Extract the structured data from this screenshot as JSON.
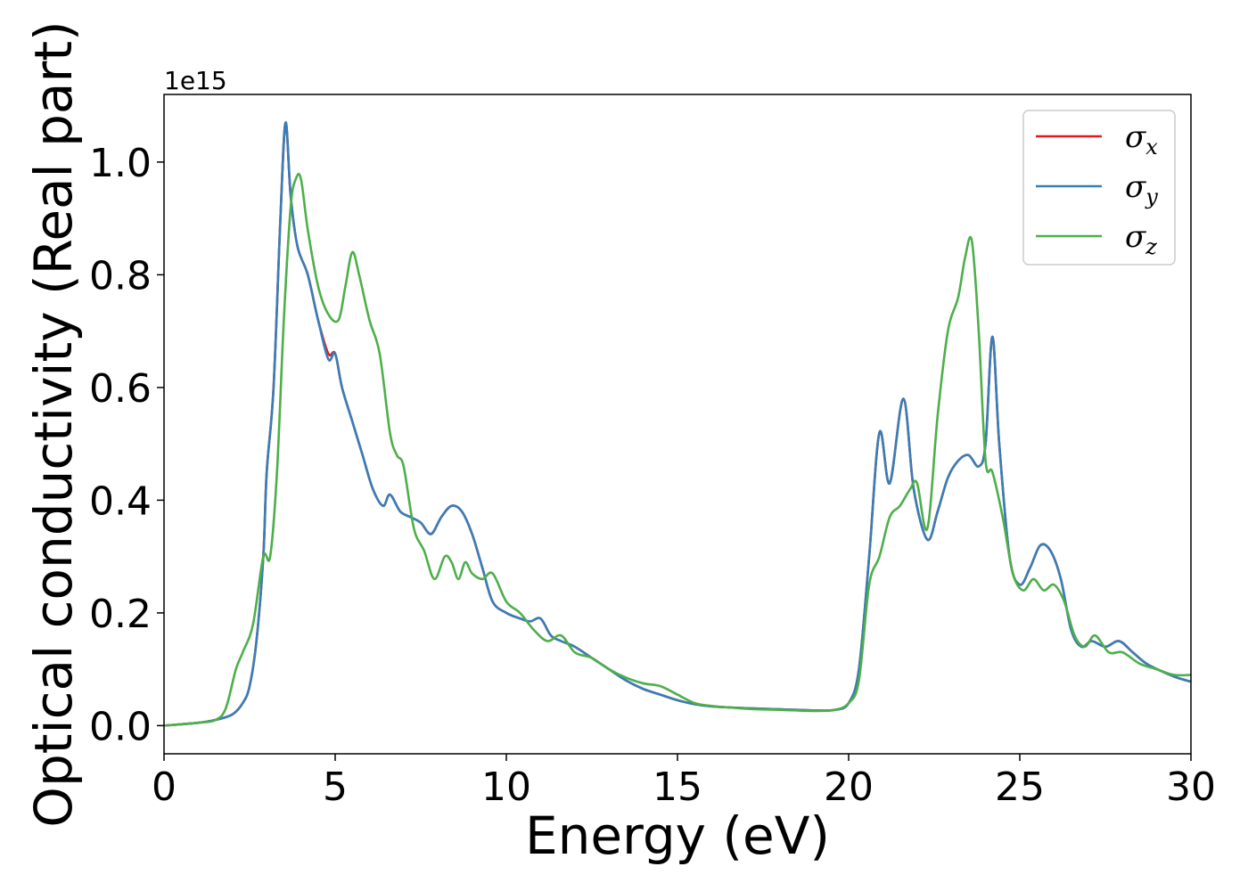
{
  "chart_data": {
    "type": "line",
    "xlabel": "Energy (eV)",
    "ylabel": "Optical conductivity (Real part)",
    "y_offset_label": "1e15",
    "xlim": [
      0,
      30
    ],
    "ylim": [
      -0.05,
      1.12
    ],
    "xticks": [
      0,
      5,
      10,
      15,
      20,
      25,
      30
    ],
    "xtick_labels": [
      "0",
      "5",
      "10",
      "15",
      "20",
      "25",
      "30"
    ],
    "yticks": [
      0.0,
      0.2,
      0.4,
      0.6,
      0.8,
      1.0
    ],
    "ytick_labels": [
      "0.0",
      "0.2",
      "0.4",
      "0.6",
      "0.8",
      "1.0"
    ],
    "grid": false,
    "legend_position": "top-right",
    "series": [
      {
        "name": "σx",
        "symbol": "σ",
        "sub": "x",
        "color": "#e41a1c",
        "x": [
          0,
          1,
          1.5,
          2,
          2.3,
          2.5,
          2.7,
          2.9,
          3.0,
          3.2,
          3.4,
          3.55,
          3.7,
          3.9,
          4.2,
          4.5,
          4.8,
          5.0,
          5.2,
          5.5,
          5.8,
          6.1,
          6.4,
          6.6,
          6.9,
          7.2,
          7.5,
          7.8,
          8.1,
          8.4,
          8.7,
          9.0,
          9.3,
          9.6,
          10.0,
          10.4,
          10.7,
          11.0,
          11.3,
          11.6,
          12.0,
          12.5,
          13.0,
          13.5,
          14.0,
          14.5,
          15.0,
          15.5,
          16.0,
          17.0,
          18.0,
          19.0,
          19.6,
          20.0,
          20.3,
          20.6,
          20.9,
          21.2,
          21.6,
          21.9,
          22.3,
          22.6,
          22.9,
          23.2,
          23.5,
          23.8,
          24.0,
          24.2,
          24.4,
          24.7,
          25.0,
          25.3,
          25.6,
          25.9,
          26.2,
          26.5,
          26.8,
          27.1,
          27.5,
          27.9,
          28.3,
          28.7,
          29.2,
          29.6,
          30.0
        ],
        "y": [
          0,
          0.005,
          0.01,
          0.02,
          0.04,
          0.07,
          0.15,
          0.3,
          0.45,
          0.6,
          0.9,
          1.07,
          0.94,
          0.85,
          0.8,
          0.72,
          0.66,
          0.66,
          0.6,
          0.54,
          0.48,
          0.42,
          0.39,
          0.41,
          0.38,
          0.37,
          0.36,
          0.34,
          0.37,
          0.39,
          0.38,
          0.34,
          0.28,
          0.22,
          0.2,
          0.19,
          0.185,
          0.19,
          0.16,
          0.15,
          0.14,
          0.12,
          0.1,
          0.08,
          0.065,
          0.055,
          0.045,
          0.038,
          0.034,
          0.031,
          0.029,
          0.027,
          0.028,
          0.04,
          0.1,
          0.3,
          0.52,
          0.43,
          0.58,
          0.42,
          0.33,
          0.38,
          0.44,
          0.47,
          0.48,
          0.46,
          0.5,
          0.69,
          0.5,
          0.3,
          0.25,
          0.28,
          0.32,
          0.31,
          0.26,
          0.17,
          0.14,
          0.15,
          0.14,
          0.15,
          0.13,
          0.11,
          0.095,
          0.085,
          0.078
        ]
      },
      {
        "name": "σy",
        "symbol": "σ",
        "sub": "y",
        "color": "#377eb8",
        "x": [
          0,
          1,
          1.5,
          2,
          2.3,
          2.5,
          2.7,
          2.9,
          3.0,
          3.2,
          3.4,
          3.55,
          3.7,
          3.9,
          4.2,
          4.5,
          4.8,
          5.0,
          5.2,
          5.5,
          5.8,
          6.1,
          6.4,
          6.6,
          6.9,
          7.2,
          7.5,
          7.8,
          8.1,
          8.4,
          8.7,
          9.0,
          9.3,
          9.6,
          10.0,
          10.4,
          10.7,
          11.0,
          11.3,
          11.6,
          12.0,
          12.5,
          13.0,
          13.5,
          14.0,
          14.5,
          15.0,
          15.5,
          16.0,
          17.0,
          18.0,
          19.0,
          19.6,
          20.0,
          20.3,
          20.6,
          20.9,
          21.2,
          21.6,
          21.9,
          22.3,
          22.6,
          22.9,
          23.2,
          23.5,
          23.8,
          24.0,
          24.2,
          24.4,
          24.7,
          25.0,
          25.3,
          25.6,
          25.9,
          26.2,
          26.5,
          26.8,
          27.1,
          27.5,
          27.9,
          28.3,
          28.7,
          29.2,
          29.6,
          30.0
        ],
        "y": [
          0,
          0.005,
          0.01,
          0.02,
          0.04,
          0.07,
          0.15,
          0.3,
          0.45,
          0.6,
          0.9,
          1.07,
          0.94,
          0.85,
          0.8,
          0.72,
          0.65,
          0.66,
          0.6,
          0.54,
          0.48,
          0.42,
          0.39,
          0.41,
          0.38,
          0.37,
          0.36,
          0.34,
          0.37,
          0.39,
          0.38,
          0.34,
          0.28,
          0.22,
          0.2,
          0.19,
          0.185,
          0.19,
          0.16,
          0.15,
          0.14,
          0.12,
          0.1,
          0.08,
          0.065,
          0.055,
          0.045,
          0.038,
          0.034,
          0.031,
          0.029,
          0.027,
          0.028,
          0.04,
          0.1,
          0.3,
          0.52,
          0.43,
          0.58,
          0.42,
          0.33,
          0.38,
          0.44,
          0.47,
          0.48,
          0.46,
          0.5,
          0.69,
          0.5,
          0.3,
          0.25,
          0.28,
          0.32,
          0.31,
          0.26,
          0.17,
          0.14,
          0.15,
          0.14,
          0.15,
          0.13,
          0.11,
          0.095,
          0.085,
          0.078
        ]
      },
      {
        "name": "σz",
        "symbol": "σ",
        "sub": "z",
        "color": "#4daf4a",
        "x": [
          0,
          1,
          1.5,
          1.8,
          2.1,
          2.3,
          2.6,
          2.9,
          3.1,
          3.3,
          3.5,
          3.7,
          3.85,
          4.0,
          4.2,
          4.5,
          4.8,
          5.1,
          5.3,
          5.5,
          5.7,
          6.0,
          6.3,
          6.6,
          6.8,
          7.0,
          7.3,
          7.6,
          7.9,
          8.2,
          8.4,
          8.6,
          8.8,
          9.0,
          9.3,
          9.6,
          10.0,
          10.4,
          10.8,
          11.2,
          11.6,
          12.0,
          12.5,
          13.0,
          13.5,
          14.0,
          14.5,
          15.0,
          15.5,
          16.0,
          17.0,
          18.0,
          19.0,
          19.6,
          20.0,
          20.3,
          20.6,
          20.9,
          21.2,
          21.5,
          21.8,
          22.0,
          22.3,
          22.6,
          22.9,
          23.2,
          23.4,
          23.6,
          23.8,
          24.0,
          24.2,
          24.5,
          24.8,
          25.1,
          25.4,
          25.7,
          26.0,
          26.3,
          26.6,
          26.9,
          27.2,
          27.6,
          28.0,
          28.5,
          29.0,
          29.5,
          30.0
        ],
        "y": [
          0,
          0.005,
          0.01,
          0.03,
          0.1,
          0.13,
          0.18,
          0.3,
          0.3,
          0.45,
          0.72,
          0.92,
          0.97,
          0.97,
          0.88,
          0.78,
          0.73,
          0.72,
          0.78,
          0.84,
          0.8,
          0.72,
          0.66,
          0.52,
          0.48,
          0.46,
          0.35,
          0.31,
          0.26,
          0.3,
          0.29,
          0.26,
          0.29,
          0.27,
          0.26,
          0.27,
          0.22,
          0.2,
          0.17,
          0.15,
          0.16,
          0.13,
          0.12,
          0.1,
          0.085,
          0.075,
          0.07,
          0.055,
          0.04,
          0.035,
          0.03,
          0.028,
          0.026,
          0.028,
          0.04,
          0.08,
          0.25,
          0.3,
          0.37,
          0.39,
          0.42,
          0.43,
          0.35,
          0.55,
          0.7,
          0.76,
          0.83,
          0.86,
          0.7,
          0.47,
          0.45,
          0.37,
          0.27,
          0.24,
          0.26,
          0.24,
          0.25,
          0.22,
          0.16,
          0.14,
          0.16,
          0.13,
          0.13,
          0.11,
          0.1,
          0.09,
          0.09
        ]
      }
    ]
  }
}
